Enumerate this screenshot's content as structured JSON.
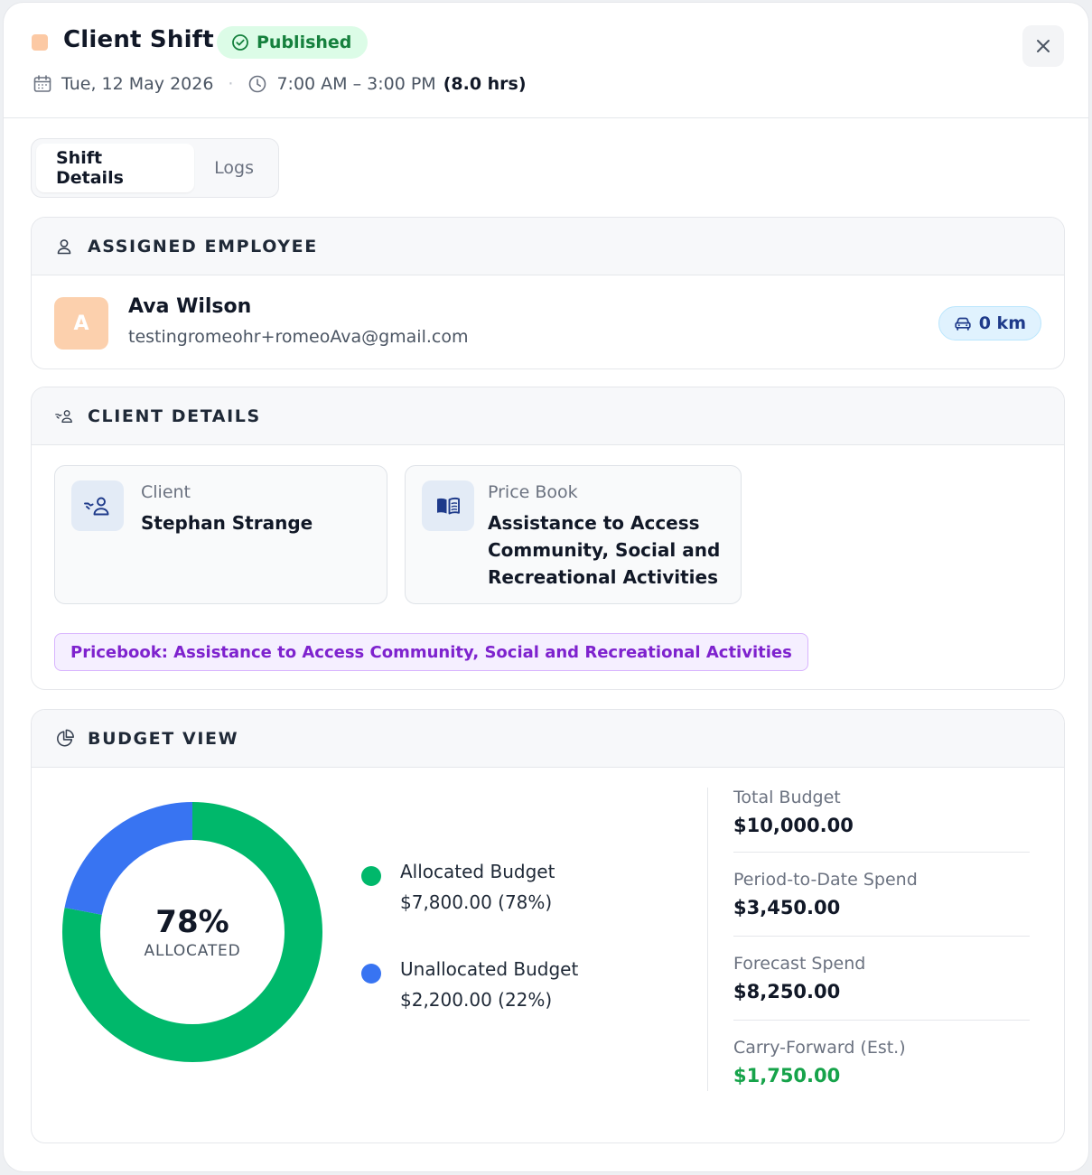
{
  "header": {
    "title": "Client Shift",
    "status": "Published",
    "date": "Tue, 12 May 2026",
    "time": "7:00 AM – 3:00 PM",
    "hours": "(8.0 hrs)",
    "color_tag": "#fcc9a4"
  },
  "tabs": [
    {
      "label": "Shift Details",
      "active": true
    },
    {
      "label": "Logs",
      "active": false
    }
  ],
  "employee_section": {
    "heading": "ASSIGNED EMPLOYEE",
    "avatar_initial": "A",
    "name": "Ava Wilson",
    "email": "testingromeohr+romeoAva@gmail.com",
    "distance": "0 km"
  },
  "client_section": {
    "heading": "CLIENT DETAILS",
    "client_label": "Client",
    "client_name": "Stephan Strange",
    "pricebook_label": "Price Book",
    "pricebook_name": "Assistance to Access Community, Social and Recreational Activities",
    "pricebook_tag": "Pricebook: Assistance to Access Community, Social and Recreational Activities"
  },
  "budget_section": {
    "heading": "BUDGET VIEW",
    "center_pct": "78%",
    "center_label": "ALLOCATED",
    "legend": [
      {
        "name": "Allocated Budget",
        "value": "$7,800.00 (78%)",
        "color": "#00b86b"
      },
      {
        "name": "Unallocated Budget",
        "value": "$2,200.00 (22%)",
        "color": "#3874f2"
      }
    ],
    "stats": [
      {
        "label": "Total Budget",
        "value": "$10,000.00",
        "color": "#111827"
      },
      {
        "label": "Period-to-Date Spend",
        "value": "$3,450.00",
        "color": "#111827"
      },
      {
        "label": "Forecast Spend",
        "value": "$8,250.00",
        "color": "#111827"
      },
      {
        "label": "Carry-Forward (Est.)",
        "value": "$1,750.00",
        "color": "#16a34a"
      }
    ]
  },
  "chart_data": {
    "type": "pie",
    "categories": [
      "Allocated Budget",
      "Unallocated Budget"
    ],
    "values": [
      78,
      22
    ]
  }
}
